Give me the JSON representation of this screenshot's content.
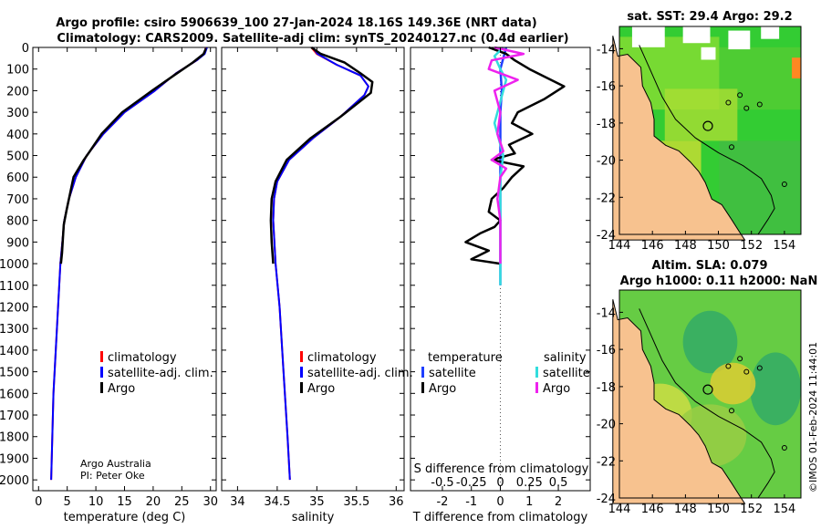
{
  "figure": {
    "title_line1": "Argo profile: csiro 5906639_100 27-Jan-2024 18.16S 149.36E (NRT data)",
    "title_line2": "Climatology: CARS2009. Satellite-adj clim: synTS_20240127.nc (0.4d earlier)",
    "credit_line1": "Argo Australia",
    "credit_line2": "PI: Peter Oke",
    "stamp": "©IMOS 01-Feb-2024 11:44:01"
  },
  "colors": {
    "climatology": "#ff0000",
    "satellite_adj": "#0000ff",
    "argo": "#000000",
    "diff_temp_sat": "#1f3fff",
    "diff_sal_sat": "#33dddd",
    "diff_sal_argo": "#ee22ee",
    "land": "#f7c28f"
  },
  "legends": {
    "temp_panel": [
      "climatology",
      "satellite-adj. clim.",
      "Argo"
    ],
    "sal_panel": [
      "climatology",
      "satellite-adj. clim.",
      "Argo"
    ],
    "diff_panel": {
      "temperature_header": "temperature",
      "salinity_header": "salinity",
      "temperature_items": [
        "satellite",
        "Argo"
      ],
      "salinity_items": [
        "satellite",
        "Argo"
      ]
    }
  },
  "maps": {
    "sst_title": "sat. SST: 29.4 Argo: 29.2",
    "sla_title_line1": "Altim. SLA: 0.079",
    "sla_title_line2": "Argo h1000: 0.11 h2000: NaN",
    "lon_ticks": [
      144,
      146,
      148,
      150,
      152,
      154
    ],
    "lat_ticks": [
      -14,
      -16,
      -18,
      -20,
      -22,
      -24
    ],
    "lon_range": [
      144,
      155
    ],
    "lat_range": [
      -24,
      -12.8
    ],
    "float_lon": 149.36,
    "float_lat": -18.16
  },
  "chart_data": [
    {
      "type": "line",
      "id": "temperature",
      "xlabel": "temperature (deg C)",
      "ylabel": "",
      "xlim": [
        -1,
        31
      ],
      "ylim": [
        2050,
        0
      ],
      "xticks": [
        0,
        5,
        10,
        15,
        20,
        25,
        30
      ],
      "yticks": [
        0,
        100,
        200,
        300,
        400,
        500,
        600,
        700,
        800,
        900,
        1000,
        1100,
        1200,
        1300,
        1400,
        1500,
        1600,
        1700,
        1800,
        1900,
        2000
      ],
      "series": [
        {
          "name": "climatology",
          "x": [
            29.2,
            28.9,
            27.6,
            24.0,
            20.3,
            15.0,
            11.3,
            8.4,
            6.5,
            5.3,
            4.5,
            3.8,
            3.2,
            2.6,
            2.2
          ],
          "y": [
            0,
            30,
            60,
            120,
            200,
            300,
            400,
            500,
            600,
            700,
            800,
            1000,
            1300,
            1600,
            2000
          ]
        },
        {
          "name": "satellite-adj. clim.",
          "x": [
            29.4,
            29.0,
            27.6,
            24.0,
            20.3,
            15.0,
            11.3,
            8.4,
            6.5,
            5.3,
            4.5,
            3.8,
            3.2,
            2.6,
            2.2
          ],
          "y": [
            0,
            30,
            60,
            120,
            200,
            300,
            400,
            500,
            600,
            700,
            800,
            1000,
            1300,
            1600,
            2000
          ]
        },
        {
          "name": "Argo",
          "x": [
            29.2,
            28.8,
            26.9,
            23.6,
            19.8,
            14.6,
            11.0,
            8.7,
            7.9,
            6.1,
            4.9,
            4.4,
            4.3,
            4.1,
            3.9
          ],
          "y": [
            5,
            30,
            70,
            130,
            200,
            300,
            400,
            490,
            520,
            600,
            750,
            820,
            860,
            950,
            1000
          ]
        }
      ]
    },
    {
      "type": "line",
      "id": "salinity",
      "xlabel": "salinity",
      "ylabel": "",
      "xlim": [
        33.8,
        36.1
      ],
      "ylim": [
        2050,
        0
      ],
      "xticks": [
        34,
        34.5,
        35,
        35.5,
        36
      ],
      "series": [
        {
          "name": "climatology",
          "x": [
            34.93,
            35.0,
            35.25,
            35.55,
            35.65,
            35.6,
            35.3,
            34.95,
            34.65,
            34.5,
            34.46,
            34.45,
            34.48,
            34.53,
            34.58,
            34.63,
            34.66
          ],
          "y": [
            0,
            30,
            80,
            130,
            180,
            220,
            320,
            420,
            520,
            620,
            700,
            800,
            1000,
            1200,
            1500,
            1800,
            2000
          ]
        },
        {
          "name": "satellite-adj. clim.",
          "x": [
            34.95,
            35.01,
            35.25,
            35.55,
            35.65,
            35.6,
            35.3,
            34.95,
            34.65,
            34.5,
            34.46,
            34.45,
            34.48,
            34.53,
            34.58,
            34.63,
            34.66
          ],
          "y": [
            0,
            30,
            80,
            130,
            180,
            220,
            320,
            420,
            520,
            620,
            700,
            800,
            1000,
            1200,
            1500,
            1800,
            2000
          ]
        },
        {
          "name": "Argo",
          "x": [
            34.93,
            35.05,
            35.35,
            35.55,
            35.7,
            35.68,
            35.3,
            34.92,
            34.62,
            34.48,
            34.43,
            34.42,
            34.43,
            34.45
          ],
          "y": [
            0,
            30,
            70,
            120,
            160,
            210,
            320,
            420,
            520,
            620,
            700,
            800,
            900,
            1000
          ]
        }
      ]
    },
    {
      "type": "line",
      "id": "difference",
      "xlabel": "T difference from climatology",
      "xlabel_top": "S difference from climatology",
      "xlim": [
        -3.1,
        3.1
      ],
      "ylim": [
        2050,
        0
      ],
      "xticks": [
        -2,
        -1,
        0,
        1,
        2
      ],
      "xtick_labels_top": [
        "-0.5",
        "-0.25",
        "0",
        "0.25",
        "0.5"
      ],
      "xtick_positions_top": [
        -2,
        -1,
        0,
        1,
        2
      ],
      "series": [
        {
          "name": "temperature satellite",
          "x": [
            0.2,
            0.1,
            0.0,
            0.05,
            0.0,
            0.0,
            0.0,
            0.0,
            0.0,
            0.0,
            0.0
          ],
          "y": [
            0,
            50,
            100,
            200,
            300,
            400,
            500,
            600,
            700,
            900,
            1100
          ]
        },
        {
          "name": "temperature Argo",
          "x": [
            -0.4,
            0.2,
            0.5,
            1.0,
            1.6,
            2.2,
            1.5,
            0.6,
            0.4,
            1.1,
            0.3,
            0.5,
            -0.3,
            0.8,
            0.4,
            0.1,
            -0.3,
            -0.4,
            0.0,
            -0.2,
            -0.7,
            -1.2,
            -0.4,
            -1.0,
            0.0
          ],
          "y": [
            0,
            30,
            60,
            100,
            140,
            180,
            240,
            300,
            350,
            400,
            450,
            490,
            520,
            550,
            600,
            650,
            700,
            760,
            800,
            830,
            860,
            900,
            940,
            980,
            1000
          ]
        },
        {
          "name": "salinity satellite",
          "x": [
            0.1,
            -0.2,
            0.0,
            0.2,
            0.0,
            -0.2,
            0.0,
            0.1,
            0.0,
            0.0,
            0.0,
            0.0,
            0.0,
            0.0
          ],
          "y": [
            0,
            40,
            100,
            150,
            250,
            350,
            450,
            500,
            600,
            700,
            800,
            900,
            1000,
            1100
          ]
        },
        {
          "name": "salinity Argo",
          "x": [
            -0.2,
            0.8,
            -0.3,
            -0.4,
            0.6,
            -0.2,
            0.0,
            -0.1,
            0.1,
            -0.3,
            0.2,
            0.0,
            -0.1,
            0.0,
            0.0,
            0.0
          ],
          "y": [
            0,
            30,
            60,
            100,
            150,
            200,
            300,
            400,
            480,
            520,
            560,
            600,
            700,
            800,
            900,
            1000
          ]
        }
      ]
    }
  ]
}
